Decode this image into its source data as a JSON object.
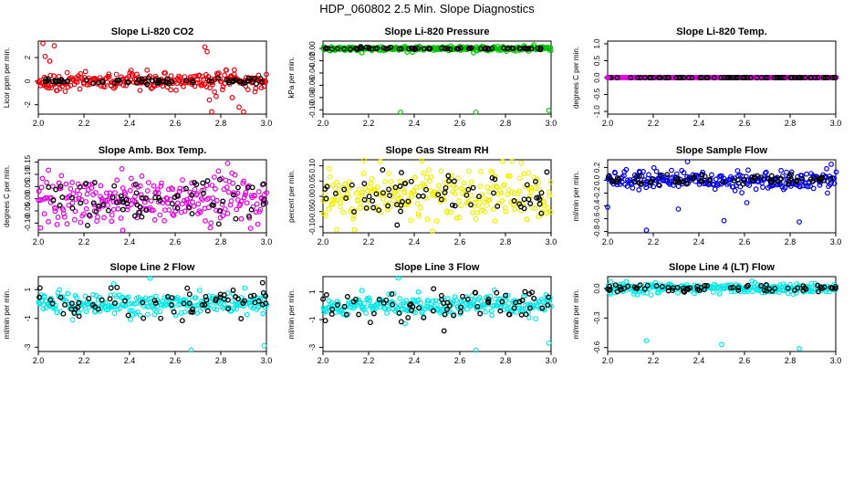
{
  "page": {
    "title": "HDP_060802  2.5 Min. Slope Diagnostics"
  },
  "chart_data": [
    {
      "type": "scatter",
      "title": "Slope Li-820 CO2",
      "ylabel": "Licor ppm per min.",
      "xlim": [
        2.0,
        3.0
      ],
      "ylim": [
        -2.8,
        3.4
      ],
      "xticks": [
        2.0,
        2.2,
        2.4,
        2.6,
        2.8,
        3.0
      ],
      "xtick_labels": [
        "2.0",
        "2.2",
        "2.4",
        "2.6",
        "2.8",
        "3.0"
      ],
      "yticks": [
        -2,
        0,
        2
      ],
      "ytick_labels": [
        "-2",
        "0",
        "2"
      ],
      "series_colors": [
        "#e8000b",
        "#000000"
      ],
      "summary": {
        "main": {
          "center": 0.0,
          "spread": 0.35
        },
        "black": {
          "center": 0.0,
          "spread": 0.12
        }
      },
      "outliers": [
        [
          2.02,
          3.2
        ],
        [
          2.03,
          2.1
        ],
        [
          2.05,
          1.7
        ],
        [
          2.07,
          3.0
        ],
        [
          2.08,
          -0.8
        ],
        [
          2.73,
          2.9
        ],
        [
          2.74,
          2.5
        ],
        [
          2.75,
          -1.6
        ],
        [
          2.76,
          -2.6
        ],
        [
          2.78,
          -1.3
        ],
        [
          2.85,
          -1.4
        ],
        [
          2.88,
          -2.2
        ],
        [
          2.9,
          -2.6
        ],
        [
          2.95,
          -0.9
        ]
      ]
    },
    {
      "type": "scatter",
      "title": "Slope Li-820 Pressure",
      "ylabel": "kPa per min.",
      "xlim": [
        2.0,
        3.0
      ],
      "ylim": [
        -0.107,
        0.012
      ],
      "xticks": [
        2.0,
        2.2,
        2.4,
        2.6,
        2.8,
        3.0
      ],
      "xtick_labels": [
        "2.0",
        "2.2",
        "2.4",
        "2.6",
        "2.8",
        "3.0"
      ],
      "yticks": [
        -0.1,
        -0.08,
        -0.06,
        -0.04,
        -0.02,
        0.0
      ],
      "ytick_labels": [
        "-0.10",
        "-0.08",
        "-0.06",
        "-0.04",
        "-0.02",
        "0.00"
      ],
      "series_colors": [
        "#00c000",
        "#000000"
      ],
      "summary": {
        "main": {
          "center": 0.0,
          "spread": 0.0018
        },
        "black": {
          "center": 0.0,
          "spread": 0.0008
        }
      },
      "outliers": [
        [
          2.17,
          -0.007
        ],
        [
          2.34,
          -0.104
        ],
        [
          2.67,
          -0.104
        ],
        [
          2.99,
          -0.101
        ],
        [
          2.66,
          -0.007
        ],
        [
          2.12,
          -0.003
        ]
      ]
    },
    {
      "type": "scatter",
      "title": "Slope Li-820 Temp.",
      "ylabel": "degrees C per min.",
      "xlim": [
        2.0,
        3.0
      ],
      "ylim": [
        -1.08,
        1.08
      ],
      "xticks": [
        2.0,
        2.2,
        2.4,
        2.6,
        2.8,
        3.0
      ],
      "xtick_labels": [
        "2.0",
        "2.2",
        "2.4",
        "2.6",
        "2.8",
        "3.0"
      ],
      "yticks": [
        -1.0,
        -0.5,
        0.0,
        0.5,
        1.0
      ],
      "ytick_labels": [
        "-1.0",
        "-0.5",
        "0.0",
        "0.5",
        "1.0"
      ],
      "series_colors": [
        "#e000e0",
        "#000000"
      ],
      "summary": {
        "main": {
          "center": 0.0,
          "spread": 0.0
        },
        "black": {
          "center": 0.0,
          "spread": 0.0
        }
      },
      "outliers": []
    },
    {
      "type": "scatter",
      "title": "Slope Amb. Box Temp.",
      "ylabel": "degrees C per min.",
      "xlim": [
        2.0,
        3.0
      ],
      "ylim": [
        -0.14,
        0.16
      ],
      "xticks": [
        2.0,
        2.2,
        2.4,
        2.6,
        2.8,
        3.0
      ],
      "xtick_labels": [
        "2.0",
        "2.2",
        "2.4",
        "2.6",
        "2.8",
        "3.0"
      ],
      "yticks": [
        -0.1,
        -0.05,
        0.0,
        0.05,
        0.1,
        0.15
      ],
      "ytick_labels": [
        "-0.10",
        "-0.05",
        "0.00",
        "0.05",
        "0.10",
        "0.15"
      ],
      "series_colors": [
        "#e000e0",
        "#000000"
      ],
      "summary": {
        "main": {
          "center": 0.0,
          "spread": 0.05
        },
        "black": {
          "center": 0.0,
          "spread": 0.05
        }
      },
      "outliers": [
        [
          2.37,
          -0.13
        ],
        [
          2.83,
          0.145
        ],
        [
          2.01,
          -0.12
        ]
      ]
    },
    {
      "type": "scatter",
      "title": "Slope Gas Stream RH",
      "ylabel": "percent per min.",
      "xlim": [
        2.0,
        3.0
      ],
      "ylim": [
        -0.12,
        0.12
      ],
      "xticks": [
        2.0,
        2.2,
        2.4,
        2.6,
        2.8,
        3.0
      ],
      "xtick_labels": [
        "2.0",
        "2.2",
        "2.4",
        "2.6",
        "2.8",
        "3.0"
      ],
      "yticks": [
        -0.1,
        -0.05,
        0.0,
        0.05,
        0.1
      ],
      "ytick_labels": [
        "-0.10",
        "-0.05",
        "0.00",
        "0.05",
        "0.10"
      ],
      "series_colors": [
        "#f0f000",
        "#000000"
      ],
      "summary": {
        "main": {
          "center": 0.0,
          "spread": 0.04
        },
        "black": {
          "center": 0.0,
          "spread": 0.04
        }
      },
      "outliers": [
        [
          2.48,
          -0.115
        ],
        [
          2.87,
          0.11
        ],
        [
          2.06,
          -0.11
        ]
      ]
    },
    {
      "type": "scatter",
      "title": "Slope Sample Flow",
      "ylabel": "ml/min per min.",
      "xlim": [
        2.0,
        3.0
      ],
      "ylim": [
        -0.82,
        0.32
      ],
      "xticks": [
        2.0,
        2.2,
        2.4,
        2.6,
        2.8,
        3.0
      ],
      "xtick_labels": [
        "2.0",
        "2.2",
        "2.4",
        "2.6",
        "2.8",
        "3.0"
      ],
      "yticks": [
        -0.8,
        -0.6,
        -0.4,
        -0.2,
        0.0,
        0.2
      ],
      "ytick_labels": [
        "-0.8",
        "-0.6",
        "-0.4",
        "-0.2",
        "0.0",
        "0.2"
      ],
      "series_colors": [
        "#0000e0",
        "#000000"
      ],
      "summary": {
        "main": {
          "center": 0.0,
          "spread": 0.07
        },
        "black": {
          "center": 0.0,
          "spread": 0.04
        }
      },
      "outliers": [
        [
          2.17,
          -0.78
        ],
        [
          2.35,
          0.29
        ],
        [
          2.51,
          -0.63
        ],
        [
          2.84,
          -0.65
        ],
        [
          2.98,
          0.25
        ],
        [
          2.96,
          0.18
        ],
        [
          2.0,
          -0.42
        ],
        [
          2.31,
          -0.45
        ],
        [
          2.61,
          -0.35
        ]
      ]
    },
    {
      "type": "scatter",
      "title": "Slope Line 2 Flow",
      "ylabel": "ml/min per min.",
      "xlim": [
        2.0,
        3.0
      ],
      "ylim": [
        -3.3,
        1.9
      ],
      "xticks": [
        2.0,
        2.2,
        2.4,
        2.6,
        2.8,
        3.0
      ],
      "xtick_labels": [
        "2.0",
        "2.2",
        "2.4",
        "2.6",
        "2.8",
        "3.0"
      ],
      "yticks": [
        -3,
        -1,
        1
      ],
      "ytick_labels": [
        "-3",
        "-1",
        "1"
      ],
      "series_colors": [
        "#00e8e8",
        "#000000"
      ],
      "summary": {
        "main": {
          "center": 0.0,
          "spread": 0.35
        },
        "black": {
          "center": 0.0,
          "spread": 0.6
        }
      },
      "outliers": [
        [
          2.49,
          1.8
        ],
        [
          2.67,
          -3.2
        ],
        [
          2.99,
          -2.9
        ],
        [
          2.33,
          1.4
        ],
        [
          2.15,
          -1.1
        ]
      ]
    },
    {
      "type": "scatter",
      "title": "Slope Line 3 Flow",
      "ylabel": "ml/min per min.",
      "xlim": [
        2.0,
        3.0
      ],
      "ylim": [
        -3.3,
        2.1
      ],
      "xticks": [
        2.0,
        2.2,
        2.4,
        2.6,
        2.8,
        3.0
      ],
      "xtick_labels": [
        "2.0",
        "2.2",
        "2.4",
        "2.6",
        "2.8",
        "3.0"
      ],
      "yticks": [
        -3,
        -1,
        1
      ],
      "ytick_labels": [
        "-3",
        "-1",
        "1"
      ],
      "series_colors": [
        "#00e8e8",
        "#000000"
      ],
      "summary": {
        "main": {
          "center": 0.0,
          "spread": 0.35
        },
        "black": {
          "center": 0.0,
          "spread": 0.6
        }
      },
      "outliers": [
        [
          2.33,
          2.0
        ],
        [
          2.67,
          -3.2
        ],
        [
          2.99,
          -2.7
        ],
        [
          2.36,
          -1.3
        ],
        [
          2.17,
          1.1
        ]
      ]
    },
    {
      "type": "scatter",
      "title": "Slope Line 4 (LT) Flow",
      "ylabel": "ml/min per min.",
      "xlim": [
        2.0,
        3.0
      ],
      "ylim": [
        -0.64,
        0.12
      ],
      "xticks": [
        2.0,
        2.2,
        2.4,
        2.6,
        2.8,
        3.0
      ],
      "xtick_labels": [
        "2.0",
        "2.2",
        "2.4",
        "2.6",
        "2.8",
        "3.0"
      ],
      "yticks": [
        -0.6,
        -0.3,
        0.0
      ],
      "ytick_labels": [
        "-0.6",
        "-0.3",
        "0.0"
      ],
      "series_colors": [
        "#00e8e8",
        "#000000"
      ],
      "summary": {
        "main": {
          "center": 0.0,
          "spread": 0.025
        },
        "black": {
          "center": 0.0,
          "spread": 0.02
        }
      },
      "outliers": [
        [
          2.17,
          -0.53
        ],
        [
          2.5,
          -0.57
        ],
        [
          2.84,
          -0.61
        ],
        [
          2.69,
          -0.04
        ],
        [
          2.38,
          -0.05
        ]
      ]
    }
  ]
}
